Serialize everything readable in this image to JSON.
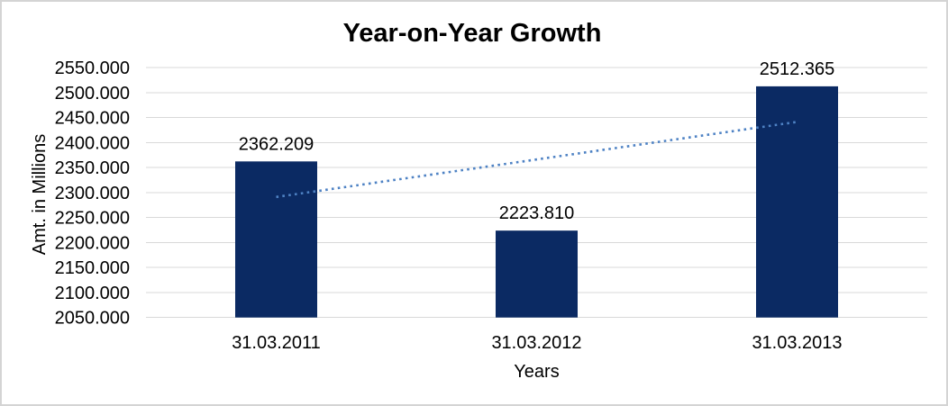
{
  "window": {
    "background": "#ffffff",
    "border_color": "#d4d4d4"
  },
  "chart_data": {
    "type": "bar",
    "title": "Year-on-Year Growth",
    "xlabel": "Years",
    "ylabel": "Amt. in Millions",
    "categories": [
      "31.03.2011",
      "31.03.2012",
      "31.03.2013"
    ],
    "values": [
      2362.209,
      2223.81,
      2512.365
    ],
    "data_labels": [
      "2362.209",
      "2223.810",
      "2512.365"
    ],
    "ylim": [
      2050,
      2550
    ],
    "ytick_step": 50,
    "yticks": [
      "2550.000",
      "2500.000",
      "2450.000",
      "2400.000",
      "2350.000",
      "2300.000",
      "2250.000",
      "2200.000",
      "2150.000",
      "2100.000",
      "2050.000"
    ],
    "grid": true,
    "legend": "none",
    "bar_color": "#0b2a63",
    "gridline_color": "#d9d9d9",
    "text_color": "#000000",
    "trendline": {
      "type": "linear",
      "style": "dotted",
      "color": "#4e82c4",
      "start_value": 2291.05,
      "end_value": 2441.21
    }
  }
}
